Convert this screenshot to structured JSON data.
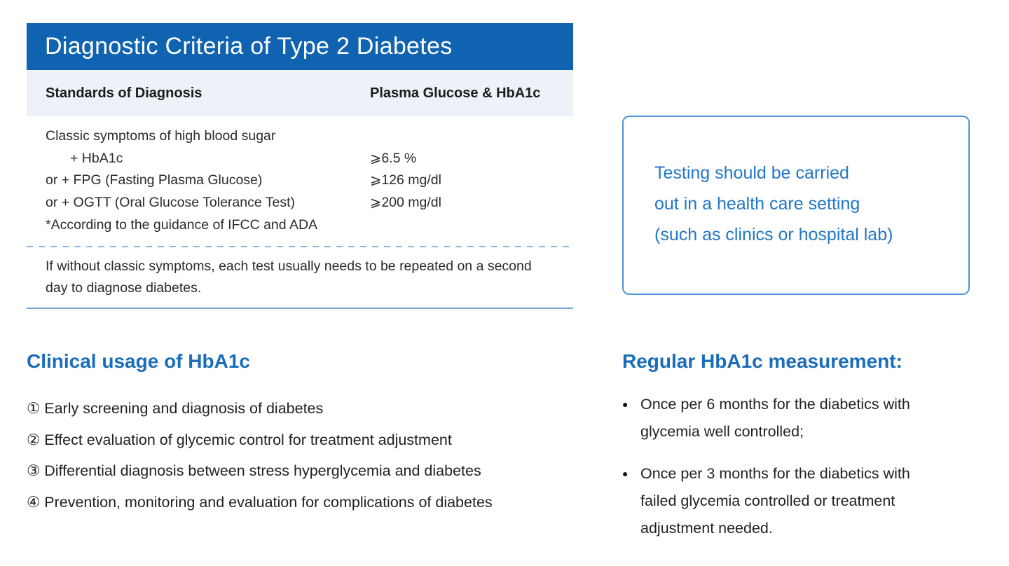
{
  "colors": {
    "title_bg": "#1063b0",
    "header_row_bg": "#edf1f8",
    "accent": "#2277c8",
    "heading_blue": "#1a6db9",
    "callout_border": "#4f95d8",
    "divider_blue": "#8ab4dc",
    "body_text": "#2b2b2b"
  },
  "table": {
    "title": "Diagnostic Criteria of Type 2 Diabetes",
    "columns": [
      "Standards of Diagnosis",
      "Plasma  Glucose & HbA1c"
    ],
    "rows": [
      {
        "standard": "Classic symptoms of high blood sugar",
        "value": ""
      },
      {
        "standard": "+ HbA1c",
        "value": "⩾6.5 %"
      },
      {
        "standard": "or + FPG (Fasting Plasma Glucose)",
        "value": "⩾126 mg/dl"
      },
      {
        "standard": "or + OGTT (Oral Glucose Tolerance Test)",
        "value": "⩾200 mg/dl"
      },
      {
        "standard": "*According to the guidance of IFCC and ADA",
        "value": ""
      }
    ],
    "note": "If without classic symptoms, each test usually needs to be repeated on a second day to diagnose diabetes."
  },
  "callout": {
    "lines": [
      "Testing should be carried",
      "out in a health care setting",
      "(such as clinics or hospital lab)"
    ]
  },
  "clinical_usage": {
    "title": "Clinical usage of HbA1c",
    "items": [
      "① Early screening and diagnosis of diabetes",
      "② Effect evaluation of glycemic control for treatment adjustment",
      "③ Differential diagnosis between stress hyperglycemia and diabetes",
      "④ Prevention, monitoring and evaluation for complications of diabetes"
    ]
  },
  "measurement": {
    "title": "Regular HbA1c measurement:",
    "bullet_icon": "●",
    "items": [
      "Once per 6 months for the diabetics with glycemia well controlled;",
      "Once per 3 months for the diabetics with failed glycemia controlled or treatment adjustment needed."
    ]
  }
}
